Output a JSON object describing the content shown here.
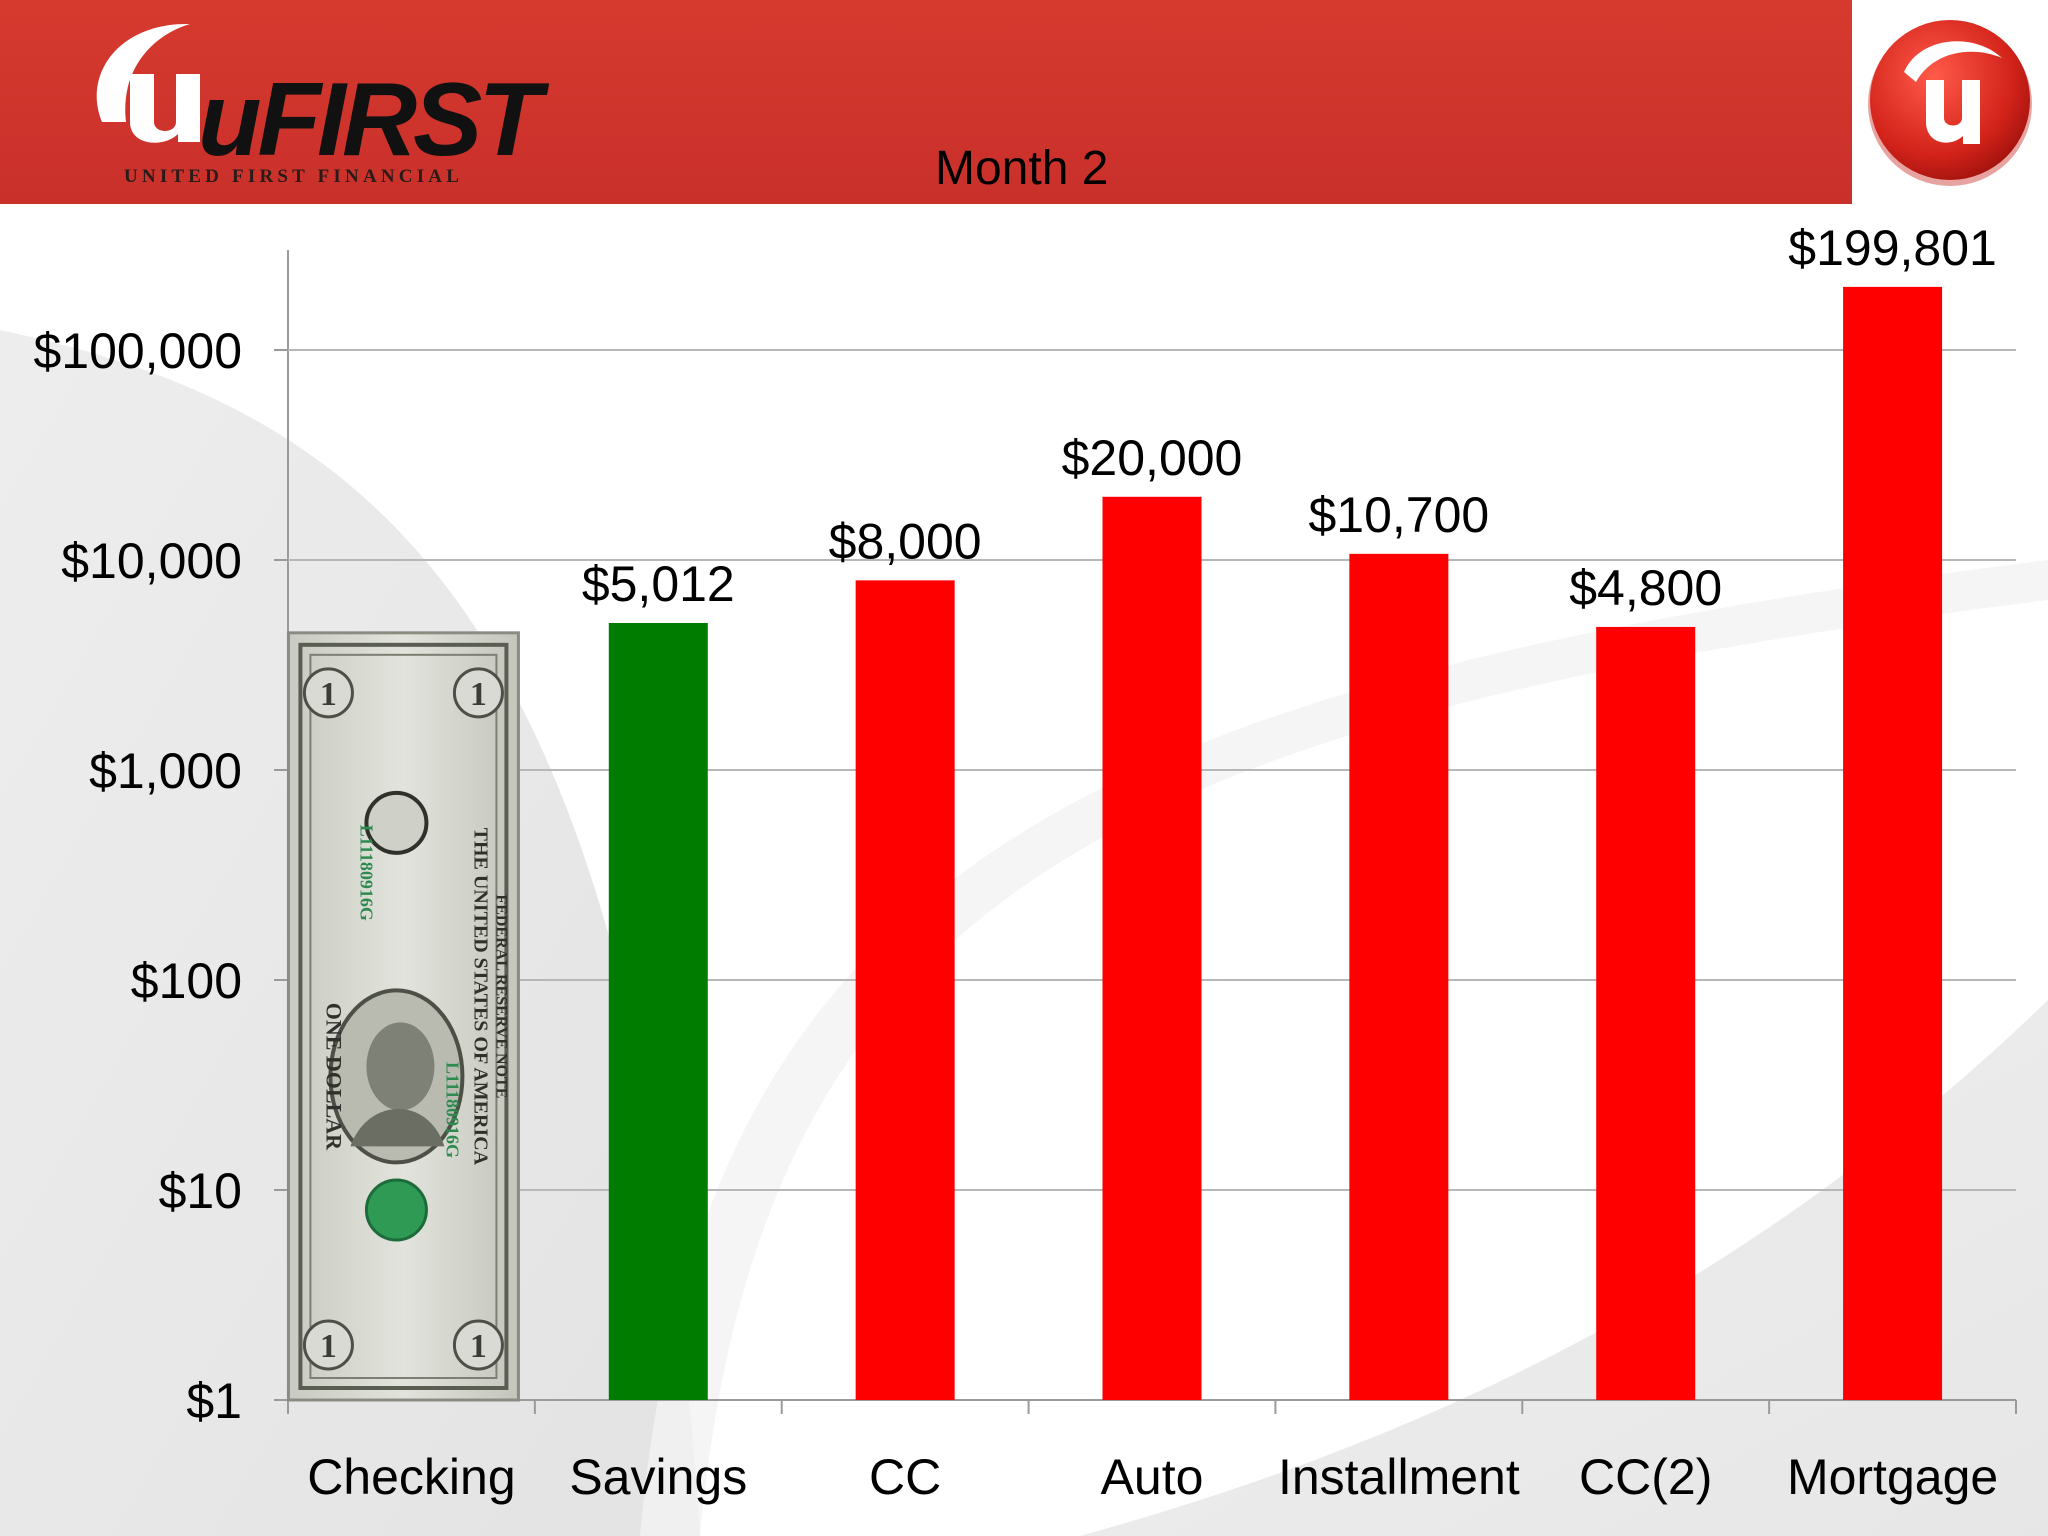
{
  "brand": {
    "logo_text": "uFIRST",
    "logo_subtitle": "UNITED FIRST FINANCIAL"
  },
  "colors": {
    "header": "#cc332b",
    "savings_bar": "#007d00",
    "debt_bar": "#ff0000",
    "grid": "#b7b7b7"
  },
  "chart_data": {
    "type": "bar",
    "title": "Month 2",
    "yscale": "log",
    "ylim": [
      1,
      1000000
    ],
    "yticks": [
      {
        "value": 1,
        "label": "$1"
      },
      {
        "value": 10,
        "label": "$10"
      },
      {
        "value": 100,
        "label": "$100"
      },
      {
        "value": 1000,
        "label": "$1,000"
      },
      {
        "value": 10000,
        "label": "$10,000"
      },
      {
        "value": 100000,
        "label": "$100,000"
      }
    ],
    "categories": [
      "Checking",
      "Savings",
      "CC",
      "Auto",
      "Installment",
      "CC(2)",
      "Mortgage"
    ],
    "bars": [
      {
        "category": "Checking",
        "value": 4500,
        "label": "",
        "fill": "dollar-bill-image"
      },
      {
        "category": "Savings",
        "value": 5012,
        "label": "$5,012",
        "fill": "green"
      },
      {
        "category": "CC",
        "value": 8000,
        "label": "$8,000",
        "fill": "red"
      },
      {
        "category": "Auto",
        "value": 20000,
        "label": "$20,000",
        "fill": "red"
      },
      {
        "category": "Installment",
        "value": 10700,
        "label": "$10,700",
        "fill": "red"
      },
      {
        "category": "CC(2)",
        "value": 4800,
        "label": "$4,800",
        "fill": "red"
      },
      {
        "category": "Mortgage",
        "value": 199801,
        "label": "$199,801",
        "fill": "red"
      }
    ],
    "grid": true,
    "legend": "none"
  },
  "dollar_bill": {
    "icon": "one-dollar-bill-icon",
    "serial": "L11180916G",
    "top_text": "THE UNITED STATES OF AMERICA",
    "bottom_text": "ONE DOLLAR",
    "frn_text": "FEDERAL RESERVE NOTE",
    "denomination": "1"
  }
}
